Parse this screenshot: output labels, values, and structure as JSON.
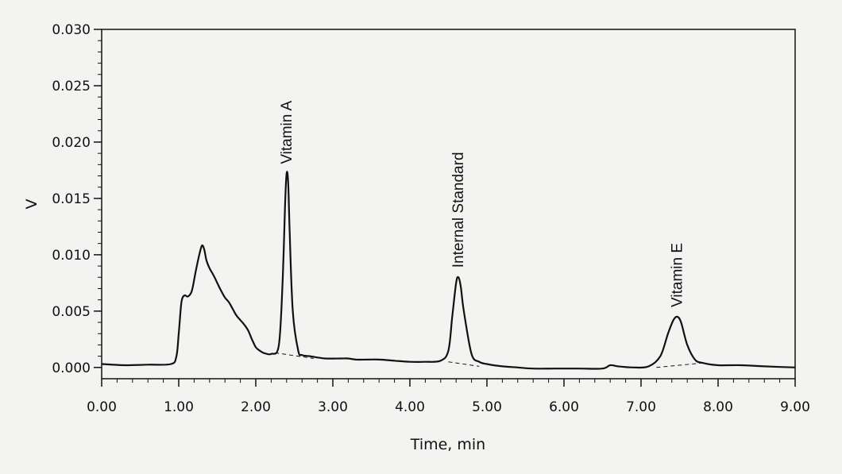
{
  "chart_data": {
    "type": "line",
    "xlabel": "Time, min",
    "ylabel": "V",
    "xlim": [
      0,
      9
    ],
    "ylim": [
      -0.001,
      0.03
    ],
    "x_ticks": [
      "0.00",
      "1.00",
      "2.00",
      "3.00",
      "4.00",
      "5.00",
      "6.00",
      "7.00",
      "8.00",
      "9.00"
    ],
    "y_ticks": [
      "0.000",
      "0.005",
      "0.010",
      "0.015",
      "0.020",
      "0.025",
      "0.030"
    ],
    "grid": false,
    "legend": "none",
    "line_color": "#111111",
    "series": [
      {
        "x": [
          0,
          0.3,
          0.6,
          0.9,
          0.97,
          1.0,
          1.03,
          1.05,
          1.08,
          1.12,
          1.17,
          1.22,
          1.26,
          1.3,
          1.33,
          1.36,
          1.4,
          1.45,
          1.5,
          1.55,
          1.6,
          1.65,
          1.7,
          1.75,
          1.8,
          1.85,
          1.9,
          1.95,
          2.0,
          2.05,
          2.1,
          2.2,
          2.3,
          2.35,
          2.38,
          2.4,
          2.42,
          2.44,
          2.48,
          2.55,
          2.6,
          2.7,
          2.9,
          3.1,
          3.2,
          3.3,
          3.45,
          3.6,
          3.8,
          4.0,
          4.2,
          4.4,
          4.5,
          4.55,
          4.6,
          4.63,
          4.66,
          4.7,
          4.8,
          4.9,
          5.0,
          5.2,
          5.4,
          5.6,
          5.9,
          6.2,
          6.5,
          6.6,
          6.7,
          6.9,
          7.1,
          7.25,
          7.35,
          7.42,
          7.47,
          7.52,
          7.6,
          7.7,
          7.8,
          8.0,
          8.3,
          8.6,
          9.0
        ],
        "y": [
          0.0003,
          0.0002,
          0.00025,
          0.0003,
          0.001,
          0.003,
          0.0055,
          0.0062,
          0.0064,
          0.0063,
          0.0068,
          0.0085,
          0.0098,
          0.0108,
          0.0105,
          0.0095,
          0.0088,
          0.0082,
          0.0075,
          0.0068,
          0.0062,
          0.0058,
          0.0052,
          0.0046,
          0.0042,
          0.0038,
          0.0033,
          0.0025,
          0.0018,
          0.0015,
          0.0013,
          0.0012,
          0.002,
          0.008,
          0.0145,
          0.0172,
          0.0165,
          0.012,
          0.005,
          0.0015,
          0.0011,
          0.001,
          0.0008,
          0.0008,
          0.0008,
          0.0007,
          0.0007,
          0.0007,
          0.0006,
          0.0005,
          0.0005,
          0.0006,
          0.0015,
          0.0045,
          0.0075,
          0.008,
          0.0072,
          0.005,
          0.0012,
          0.0005,
          0.0003,
          0.0001,
          0,
          -0.0001,
          -0.0001,
          -0.0001,
          -0.0001,
          0.0002,
          0.0001,
          0,
          0.0001,
          0.001,
          0.003,
          0.0042,
          0.0045,
          0.004,
          0.002,
          0.0007,
          0.0004,
          0.0002,
          0.0002,
          0.0001,
          0
        ]
      }
    ],
    "baseline_segments": [
      {
        "x": [
          2.25,
          2.75
        ],
        "y": [
          0.0013,
          0.0008
        ]
      },
      {
        "x": [
          4.5,
          4.9
        ],
        "y": [
          0.0005,
          0.0001
        ]
      },
      {
        "x": [
          7.2,
          7.8
        ],
        "y": [
          0.0,
          0.0004
        ]
      }
    ],
    "annotations": [
      {
        "text": "Vitamin A",
        "x": 2.4,
        "y": 0.0172
      },
      {
        "text": "Internal Standard",
        "x": 4.63,
        "y": 0.008
      },
      {
        "text": "Vitamin E",
        "x": 7.47,
        "y": 0.0045
      }
    ]
  }
}
